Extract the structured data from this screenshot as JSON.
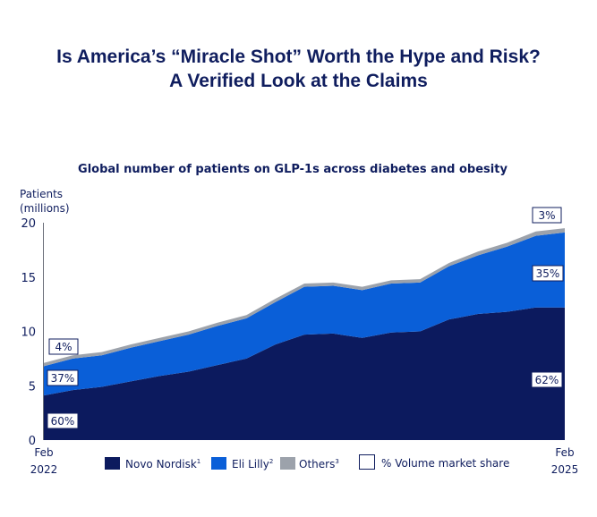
{
  "headline": {
    "line1": "Is America’s “Miracle Shot” Worth the Hype and Risk?",
    "line2": "A Verified Look at the Claims"
  },
  "chart_data": {
    "type": "area",
    "stacked": true,
    "title": "Global number of patients on GLP-1s across diabetes and obesity",
    "ylabel": "Patients (millions)",
    "ylabel_lines": [
      "Patients",
      "(millions)"
    ],
    "ylim": [
      0,
      20
    ],
    "yticks": [
      0,
      5,
      10,
      15,
      20
    ],
    "x": [
      "2022-02",
      "2022-04",
      "2022-06",
      "2022-08",
      "2022-10",
      "2022-12",
      "2023-02",
      "2023-04",
      "2023-06",
      "2023-08",
      "2023-10",
      "2023-12",
      "2024-02",
      "2024-04",
      "2024-06",
      "2024-08",
      "2024-10",
      "2024-12",
      "2025-02"
    ],
    "xtick_labels": [
      {
        "month": "Feb",
        "year": "2022"
      },
      {
        "month": "Feb",
        "year": "2025"
      }
    ],
    "grid": false,
    "legend_position": "bottom",
    "series": [
      {
        "name": "Novo Nordisk",
        "footnote": "1",
        "color": "#0c1a5e",
        "values": [
          4.1,
          4.6,
          4.9,
          5.4,
          5.9,
          6.3,
          6.9,
          7.5,
          8.8,
          9.7,
          9.8,
          9.4,
          9.9,
          10.0,
          11.1,
          11.6,
          11.8,
          12.2,
          12.2
        ]
      },
      {
        "name": "Eli Lilly",
        "footnote": "2",
        "color": "#0a5fd8",
        "values": [
          2.7,
          2.9,
          2.9,
          3.1,
          3.2,
          3.4,
          3.6,
          3.7,
          3.9,
          4.4,
          4.4,
          4.4,
          4.5,
          4.5,
          4.9,
          5.4,
          6.0,
          6.6,
          6.9
        ]
      },
      {
        "name": "Others",
        "footnote": "3",
        "color": "#9ca2ab",
        "values": [
          0.3,
          0.3,
          0.3,
          0.3,
          0.3,
          0.3,
          0.3,
          0.3,
          0.3,
          0.3,
          0.3,
          0.3,
          0.3,
          0.3,
          0.3,
          0.35,
          0.35,
          0.4,
          0.4
        ]
      }
    ],
    "share_legend": "% Volume market share",
    "annotations": {
      "start": {
        "Novo Nordisk": "60%",
        "Eli Lilly": "37%",
        "Others": "4%"
      },
      "end": {
        "Novo Nordisk": "62%",
        "Eli Lilly": "35%",
        "Others": "3%"
      }
    }
  }
}
